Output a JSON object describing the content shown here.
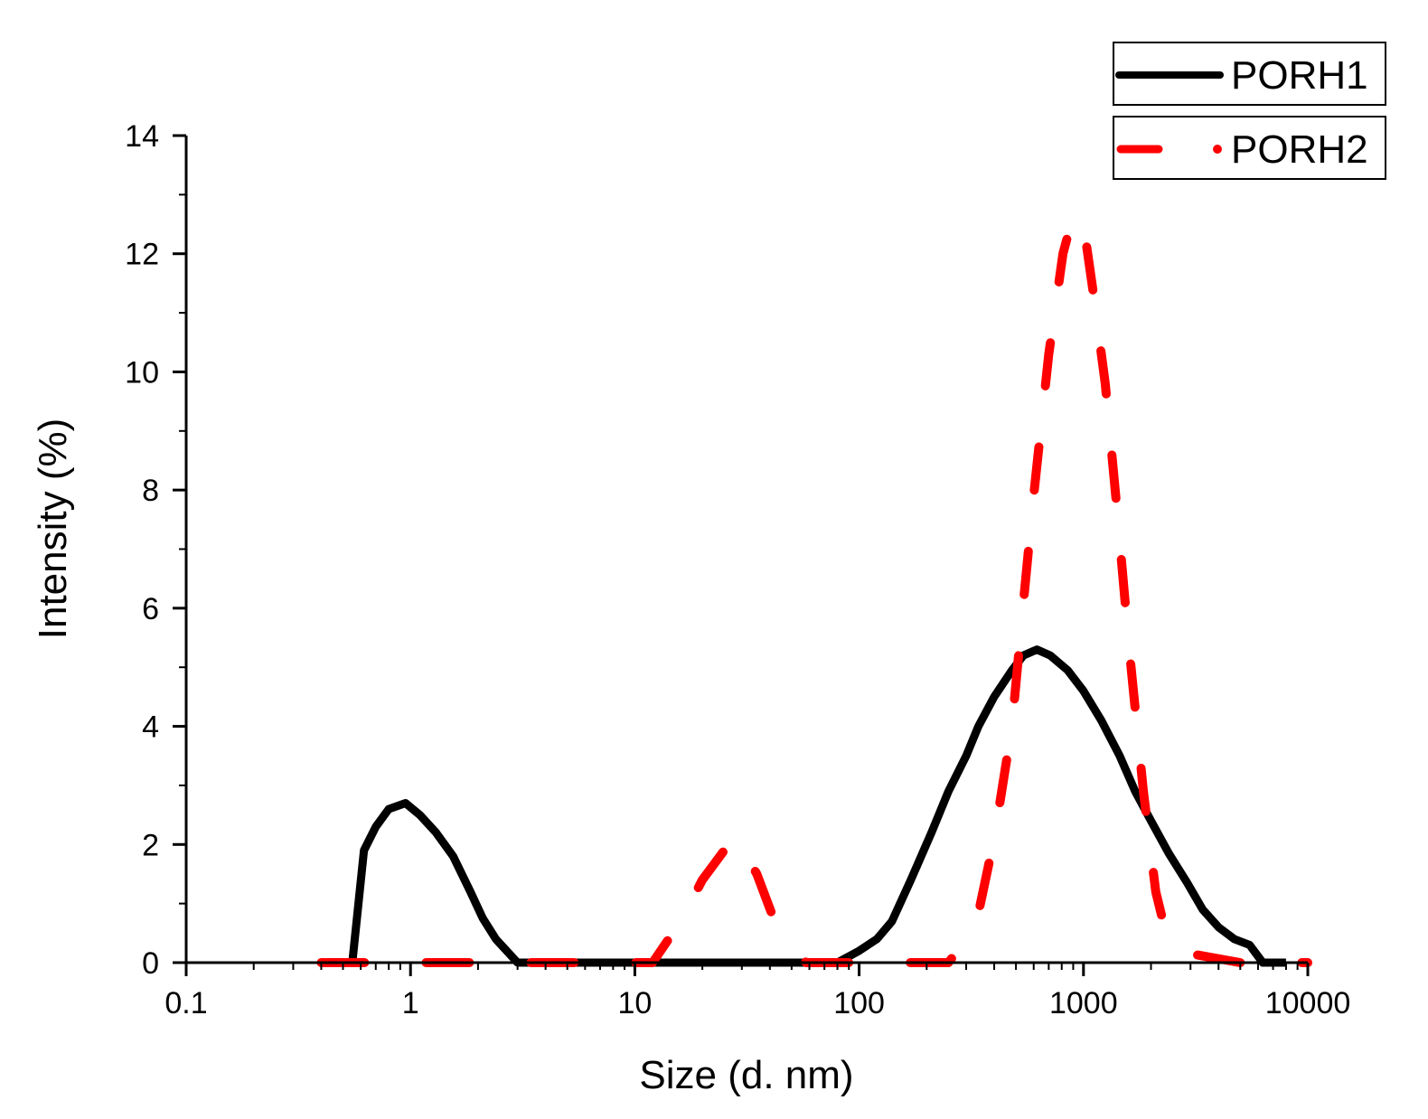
{
  "chart_data": {
    "type": "line",
    "title": "",
    "xlabel": "Size (d. nm)",
    "ylabel": "Intensity (%)",
    "xscale": "log",
    "xlim": [
      0.1,
      10000
    ],
    "ylim": [
      0,
      14
    ],
    "x_ticks": [
      0.1,
      1,
      10,
      100,
      1000,
      10000
    ],
    "x_tick_labels": [
      "0.1",
      "1",
      "10",
      "100",
      "1000",
      "10000"
    ],
    "y_ticks": [
      0,
      2,
      4,
      6,
      8,
      10,
      12,
      14
    ],
    "y_tick_labels": [
      "0",
      "2",
      "4",
      "6",
      "8",
      "10",
      "12",
      "14"
    ],
    "legend_position": "top-right",
    "series": [
      {
        "name": "PORH1",
        "color": "#000000",
        "style": "solid",
        "points": [
          [
            0.4,
            0
          ],
          [
            0.55,
            0
          ],
          [
            0.62,
            1.9
          ],
          [
            0.7,
            2.3
          ],
          [
            0.8,
            2.6
          ],
          [
            0.95,
            2.7
          ],
          [
            1.1,
            2.5
          ],
          [
            1.3,
            2.2
          ],
          [
            1.55,
            1.8
          ],
          [
            1.85,
            1.2
          ],
          [
            2.1,
            0.75
          ],
          [
            2.4,
            0.4
          ],
          [
            3.0,
            0
          ],
          [
            10,
            0
          ],
          [
            50,
            0
          ],
          [
            80,
            0
          ],
          [
            100,
            0.2
          ],
          [
            120,
            0.4
          ],
          [
            140,
            0.7
          ],
          [
            170,
            1.4
          ],
          [
            210,
            2.2
          ],
          [
            250,
            2.9
          ],
          [
            300,
            3.5
          ],
          [
            340,
            4.0
          ],
          [
            400,
            4.5
          ],
          [
            480,
            4.95
          ],
          [
            540,
            5.2
          ],
          [
            620,
            5.3
          ],
          [
            710,
            5.2
          ],
          [
            850,
            4.95
          ],
          [
            1000,
            4.6
          ],
          [
            1200,
            4.1
          ],
          [
            1450,
            3.5
          ],
          [
            1700,
            2.9
          ],
          [
            2000,
            2.4
          ],
          [
            2400,
            1.85
          ],
          [
            2900,
            1.35
          ],
          [
            3400,
            0.9
          ],
          [
            4000,
            0.6
          ],
          [
            4700,
            0.4
          ],
          [
            5500,
            0.3
          ],
          [
            6300,
            0
          ],
          [
            8000,
            0
          ]
        ]
      },
      {
        "name": "PORH2",
        "color": "#ff0000",
        "style": "dashed",
        "points": [
          [
            0.4,
            0
          ],
          [
            3.0,
            0
          ],
          [
            10,
            0
          ],
          [
            12,
            0
          ],
          [
            16,
            0.7
          ],
          [
            20,
            1.4
          ],
          [
            28,
            2.15
          ],
          [
            35,
            1.5
          ],
          [
            42,
            0.7
          ],
          [
            50,
            0.3
          ],
          [
            58,
            0
          ],
          [
            100,
            0
          ],
          [
            200,
            0
          ],
          [
            250,
            0
          ],
          [
            330,
            0.6
          ],
          [
            400,
            2.1
          ],
          [
            480,
            4.0
          ],
          [
            540,
            6.1
          ],
          [
            600,
            7.9
          ],
          [
            700,
            10.3
          ],
          [
            810,
            12.0
          ],
          [
            900,
            12.65
          ],
          [
            1000,
            12.5
          ],
          [
            1100,
            11.4
          ],
          [
            1250,
            9.8
          ],
          [
            1400,
            7.8
          ],
          [
            1600,
            5.3
          ],
          [
            1850,
            2.9
          ],
          [
            2100,
            1.2
          ],
          [
            2400,
            0.3
          ],
          [
            3000,
            0.15
          ],
          [
            5000,
            0
          ],
          [
            10000,
            0
          ]
        ]
      }
    ]
  }
}
